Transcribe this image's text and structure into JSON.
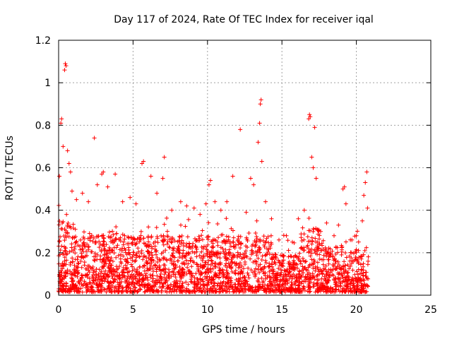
{
  "chart_data": {
    "type": "scatter",
    "title": "Day 117 of 2024, Rate Of TEC Index for receiver iqal",
    "xlabel": "GPS time / hours",
    "ylabel": "ROTI / TECUs",
    "xlim": [
      0,
      25
    ],
    "ylim": [
      0,
      1.2
    ],
    "x_ticks": [
      "0",
      "5",
      "10",
      "15",
      "20",
      "25"
    ],
    "y_ticks": [
      "0",
      "0.2",
      "0.4",
      "0.6",
      "0.8",
      "1",
      "1.2"
    ],
    "grid": true,
    "marker": "+",
    "color": "#ff0000",
    "data_extent_hours": [
      0,
      20.8
    ],
    "series": [
      {
        "name": "ROTI",
        "points": [
          [
            0.05,
            0.56
          ],
          [
            0.15,
            0.81
          ],
          [
            0.2,
            0.83
          ],
          [
            0.3,
            0.7
          ],
          [
            0.4,
            1.06
          ],
          [
            0.45,
            1.09
          ],
          [
            0.5,
            1.08
          ],
          [
            0.6,
            0.68
          ],
          [
            0.7,
            0.62
          ],
          [
            0.8,
            0.58
          ],
          [
            0.9,
            0.49
          ],
          [
            1.2,
            0.45
          ],
          [
            1.6,
            0.48
          ],
          [
            2.0,
            0.44
          ],
          [
            2.4,
            0.74
          ],
          [
            2.6,
            0.52
          ],
          [
            2.9,
            0.57
          ],
          [
            3.0,
            0.58
          ],
          [
            3.3,
            0.51
          ],
          [
            3.8,
            0.57
          ],
          [
            4.3,
            0.44
          ],
          [
            4.8,
            0.46
          ],
          [
            5.2,
            0.43
          ],
          [
            5.6,
            0.62
          ],
          [
            5.7,
            0.63
          ],
          [
            6.2,
            0.56
          ],
          [
            6.6,
            0.48
          ],
          [
            7.0,
            0.55
          ],
          [
            7.1,
            0.65
          ],
          [
            7.6,
            0.4
          ],
          [
            8.2,
            0.44
          ],
          [
            8.6,
            0.42
          ],
          [
            9.1,
            0.41
          ],
          [
            9.5,
            0.38
          ],
          [
            9.9,
            0.43
          ],
          [
            10.1,
            0.52
          ],
          [
            10.2,
            0.54
          ],
          [
            10.5,
            0.44
          ],
          [
            10.9,
            0.4
          ],
          [
            11.3,
            0.44
          ],
          [
            11.7,
            0.56
          ],
          [
            12.2,
            0.78
          ],
          [
            12.6,
            0.39
          ],
          [
            12.9,
            0.55
          ],
          [
            13.1,
            0.52
          ],
          [
            13.4,
            0.72
          ],
          [
            13.5,
            0.81
          ],
          [
            13.55,
            0.9
          ],
          [
            13.6,
            0.92
          ],
          [
            13.65,
            0.63
          ],
          [
            13.9,
            0.44
          ],
          [
            14.3,
            0.36
          ],
          [
            14.8,
            0.26
          ],
          [
            15.3,
            0.28
          ],
          [
            15.7,
            0.25
          ],
          [
            16.1,
            0.36
          ],
          [
            16.5,
            0.4
          ],
          [
            16.8,
            0.83
          ],
          [
            16.85,
            0.85
          ],
          [
            16.9,
            0.84
          ],
          [
            17.0,
            0.65
          ],
          [
            17.1,
            0.6
          ],
          [
            17.2,
            0.79
          ],
          [
            17.3,
            0.55
          ],
          [
            17.6,
            0.3
          ],
          [
            18.0,
            0.34
          ],
          [
            18.5,
            0.28
          ],
          [
            18.8,
            0.33
          ],
          [
            19.1,
            0.5
          ],
          [
            19.2,
            0.51
          ],
          [
            19.3,
            0.43
          ],
          [
            19.7,
            0.26
          ],
          [
            20.0,
            0.28
          ],
          [
            20.4,
            0.35
          ],
          [
            20.5,
            0.47
          ],
          [
            20.6,
            0.53
          ],
          [
            20.7,
            0.58
          ],
          [
            20.75,
            0.41
          ]
        ]
      }
    ]
  }
}
